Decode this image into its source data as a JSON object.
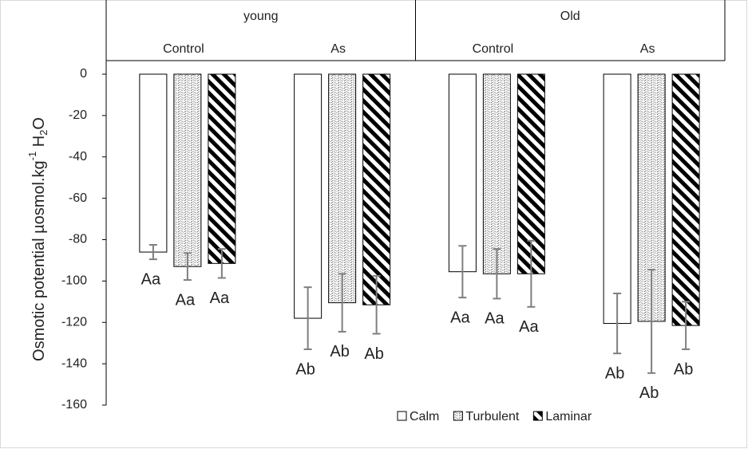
{
  "chart_data": {
    "type": "bar",
    "ylabel": [
      "Osmotic potential µosmol.kg",
      "-1",
      " H",
      "2",
      "O"
    ],
    "groups": [
      "young",
      "Old"
    ],
    "categories": [
      "Control",
      "As",
      "Control",
      "As"
    ],
    "ylim": [
      -160,
      0
    ],
    "yticks": [
      0,
      -20,
      -40,
      -60,
      -80,
      -100,
      -120,
      -140,
      -160
    ],
    "series": [
      {
        "name": "Calm",
        "color": "#000000",
        "pattern": "none",
        "values": [
          -86,
          -118,
          -95.5,
          -120.5
        ],
        "errors": [
          3.5,
          15,
          12.5,
          14.5
        ],
        "letters": [
          "Aa",
          "Ab",
          "Aa",
          "Ab"
        ]
      },
      {
        "name": "Turbulent",
        "color": "#000000",
        "pattern": "wave",
        "values": [
          -93,
          -110.5,
          -96.5,
          -119.5
        ],
        "errors": [
          6.5,
          14,
          12,
          25
        ],
        "letters": [
          "Aa",
          "Ab",
          "Aa",
          "Ab"
        ]
      },
      {
        "name": "Laminar",
        "color": "#000000",
        "pattern": "diagonal",
        "values": [
          -91.5,
          -111.5,
          -96.5,
          -121.5
        ],
        "errors": [
          7,
          14,
          16,
          11.5
        ],
        "letters": [
          "Aa",
          "Ab",
          "Aa",
          "Ab"
        ]
      }
    ],
    "error_color": "#7f7f7f",
    "legend": "bottom-right"
  }
}
